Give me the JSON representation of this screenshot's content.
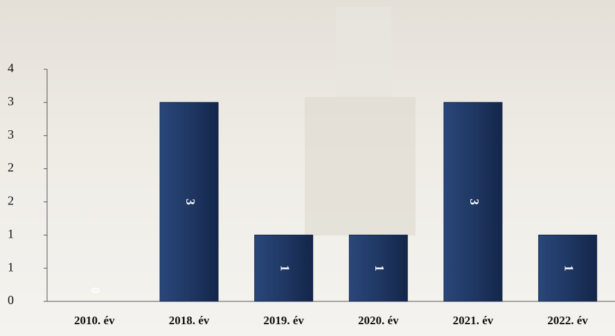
{
  "chart_data": {
    "type": "bar",
    "categories": [
      "2010. év",
      "2018. év",
      "2019. év",
      "2020. év",
      "2021. év",
      "2022. év"
    ],
    "values": [
      0,
      3,
      1,
      1,
      3,
      1
    ],
    "color": "#1f3864",
    "ylim": [
      0,
      3.5
    ],
    "yticks": [
      0,
      {
        "value": 0.5,
        "label": "1"
      },
      1,
      {
        "value": 1.5,
        "label": "2"
      },
      2,
      {
        "value": 2.5,
        "label": "3"
      },
      3,
      {
        "value": 3.5,
        "label": "4"
      }
    ],
    "grid": false
  }
}
